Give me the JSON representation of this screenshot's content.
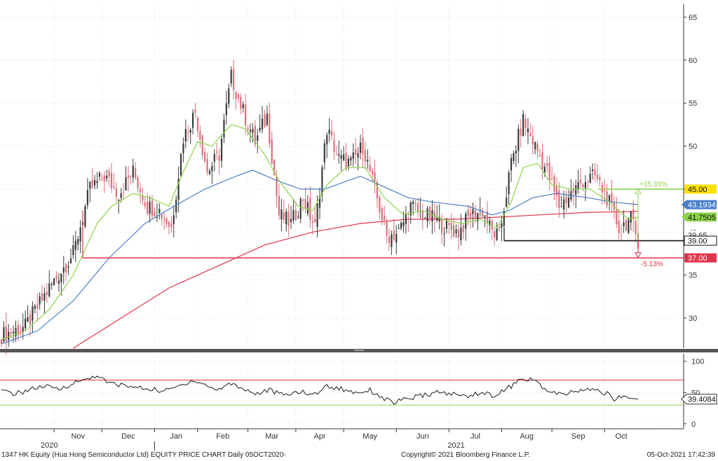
{
  "chart_data": [
    {
      "type": "candlestick",
      "title": "",
      "xlabel": "",
      "ylabel": "",
      "ylim": [
        26.5,
        66.5
      ],
      "y_ticks": [
        30,
        35,
        40,
        45,
        50,
        55,
        60,
        65
      ],
      "x_month_labels": [
        "Nov",
        "Dec",
        "Jan",
        "Feb",
        "Mar",
        "Apr",
        "May",
        "Jun",
        "Jul",
        "Aug",
        "Sep",
        "Oct"
      ],
      "x_year_labels": [
        "2020",
        "2021"
      ],
      "grid": true,
      "series": [
        {
          "name": "Price",
          "type": "candlestick",
          "up_color": "#3a3a3a",
          "down_color": "#d96f7a"
        },
        {
          "name": "",
          "type": "line",
          "color": "#8bd44a"
        },
        {
          "name": "",
          "type": "line",
          "color": "#4a7fc8"
        },
        {
          "name": "",
          "type": "line",
          "color": "#e0344a"
        }
      ],
      "close_path": [
        [
          0,
          28.0
        ],
        [
          10,
          29.0
        ],
        [
          20,
          33.5
        ],
        [
          30,
          37.5
        ],
        [
          37,
          45.0
        ],
        [
          43,
          46.5
        ],
        [
          49,
          44.5
        ],
        [
          55,
          47.0
        ],
        [
          61,
          43.0
        ],
        [
          66,
          42.5
        ],
        [
          71,
          40.5
        ],
        [
          76,
          51.0
        ],
        [
          81,
          54.0
        ],
        [
          86,
          47.0
        ],
        [
          91,
          49.0
        ],
        [
          96,
          58.0
        ],
        [
          101,
          54.0
        ],
        [
          106,
          50.5
        ],
        [
          111,
          53.5
        ],
        [
          116,
          42.0
        ],
        [
          121,
          41.0
        ],
        [
          126,
          44.0
        ],
        [
          131,
          40.5
        ],
        [
          136,
          52.0
        ],
        [
          141,
          48.5
        ],
        [
          146,
          48.0
        ],
        [
          151,
          50.0
        ],
        [
          156,
          45.0
        ],
        [
          161,
          39.5
        ],
        [
          166,
          40.0
        ],
        [
          171,
          43.0
        ],
        [
          176,
          42.0
        ],
        [
          181,
          41.5
        ],
        [
          186,
          40.5
        ],
        [
          191,
          40.0
        ],
        [
          196,
          42.0
        ],
        [
          201,
          42.5
        ],
        [
          205,
          40.0
        ],
        [
          208,
          39.5
        ],
        [
          213,
          48.0
        ],
        [
          218,
          53.0
        ],
        [
          223,
          50.0
        ],
        [
          228,
          47.0
        ],
        [
          233,
          43.0
        ],
        [
          238,
          44.5
        ],
        [
          243,
          46.0
        ],
        [
          248,
          46.5
        ],
        [
          253,
          44.0
        ],
        [
          258,
          40.5
        ],
        [
          263,
          41.5
        ],
        [
          266,
          39.0
        ]
      ],
      "ma_fast_path": [
        [
          0,
          27.5
        ],
        [
          10,
          28.5
        ],
        [
          20,
          31.0
        ],
        [
          30,
          35.0
        ],
        [
          40,
          41.0
        ],
        [
          46,
          43.0
        ],
        [
          55,
          44.5
        ],
        [
          62,
          44.0
        ],
        [
          70,
          43.0
        ],
        [
          76,
          47.0
        ],
        [
          82,
          50.5
        ],
        [
          88,
          50.0
        ],
        [
          96,
          52.5
        ],
        [
          102,
          52.0
        ],
        [
          110,
          49.0
        ],
        [
          116,
          46.0
        ],
        [
          124,
          43.0
        ],
        [
          130,
          42.5
        ],
        [
          136,
          45.5
        ],
        [
          144,
          47.5
        ],
        [
          152,
          47.5
        ],
        [
          160,
          44.0
        ],
        [
          168,
          42.0
        ],
        [
          176,
          42.5
        ],
        [
          184,
          41.5
        ],
        [
          192,
          41.0
        ],
        [
          200,
          41.5
        ],
        [
          207,
          40.5
        ],
        [
          213,
          43.5
        ],
        [
          218,
          47.5
        ],
        [
          224,
          48.0
        ],
        [
          230,
          45.5
        ],
        [
          238,
          45.0
        ],
        [
          246,
          45.0
        ],
        [
          254,
          43.5
        ],
        [
          262,
          41.5
        ],
        [
          266,
          41.75
        ]
      ],
      "ma_mid_path": [
        [
          0,
          27.0
        ],
        [
          15,
          28.5
        ],
        [
          30,
          32.0
        ],
        [
          45,
          37.0
        ],
        [
          60,
          41.0
        ],
        [
          72,
          43.0
        ],
        [
          85,
          45.0
        ],
        [
          98,
          46.5
        ],
        [
          105,
          47.2
        ],
        [
          115,
          46.0
        ],
        [
          125,
          45.0
        ],
        [
          135,
          45.0
        ],
        [
          150,
          46.5
        ],
        [
          158,
          45.5
        ],
        [
          170,
          44.0
        ],
        [
          180,
          43.5
        ],
        [
          195,
          43.0
        ],
        [
          205,
          42.0
        ],
        [
          212,
          42.5
        ],
        [
          222,
          44.0
        ],
        [
          232,
          44.5
        ],
        [
          245,
          44.0
        ],
        [
          255,
          43.5
        ],
        [
          266,
          43.19
        ]
      ],
      "ma_slow_path": [
        [
          30,
          26.5
        ],
        [
          50,
          30.0
        ],
        [
          70,
          33.5
        ],
        [
          90,
          36.0
        ],
        [
          110,
          38.5
        ],
        [
          130,
          40.0
        ],
        [
          150,
          41.0
        ],
        [
          170,
          41.5
        ],
        [
          190,
          41.5
        ],
        [
          205,
          41.7
        ],
        [
          225,
          42.0
        ],
        [
          245,
          42.3
        ],
        [
          266,
          42.4
        ]
      ],
      "horizontal_levels": [
        {
          "value": 45.0,
          "label": "45.00",
          "color": "#8bd44a"
        },
        {
          "value": 39.0,
          "label": "39.00",
          "color": "#111111"
        },
        {
          "value": 37.0,
          "label": "37.00",
          "color": "#e0344a"
        }
      ],
      "annotations": [
        {
          "text": "+15.33%",
          "color": "#8bd44a"
        },
        {
          "text": "-5.13%",
          "color": "#e0344a"
        }
      ],
      "value_tags": [
        {
          "label": "43.1934",
          "value": 43.1934,
          "color": "#4a7fc8"
        },
        {
          "label": "41.7505",
          "value": 41.7505,
          "color": "#8bd44a"
        },
        {
          "label": "39.65",
          "value": 39.65,
          "color": "#e0344a"
        }
      ]
    },
    {
      "type": "line",
      "title": "",
      "ylim": [
        -8,
        112
      ],
      "y_ticks": [
        0,
        50,
        100
      ],
      "reference_lines": [
        {
          "value": 70,
          "color": "#e0344a"
        },
        {
          "value": 30,
          "color": "#8bd44a"
        }
      ],
      "last_value_label": "39.4084",
      "last_value": 39.4084,
      "series": [
        {
          "name": "",
          "color": "#1a1a1a",
          "path": [
            [
              0,
              52
            ],
            [
              6,
              48
            ],
            [
              12,
              55
            ],
            [
              18,
              60
            ],
            [
              24,
              55
            ],
            [
              30,
              65
            ],
            [
              36,
              72
            ],
            [
              40,
              78
            ],
            [
              44,
              66
            ],
            [
              50,
              62
            ],
            [
              56,
              58
            ],
            [
              62,
              56
            ],
            [
              68,
              52
            ],
            [
              74,
              60
            ],
            [
              80,
              70
            ],
            [
              84,
              64
            ],
            [
              90,
              54
            ],
            [
              96,
              65
            ],
            [
              100,
              58
            ],
            [
              106,
              48
            ],
            [
              112,
              54
            ],
            [
              118,
              45
            ],
            [
              124,
              52
            ],
            [
              130,
              46
            ],
            [
              136,
              60
            ],
            [
              142,
              56
            ],
            [
              148,
              50
            ],
            [
              154,
              54
            ],
            [
              160,
              40
            ],
            [
              164,
              34
            ],
            [
              170,
              40
            ],
            [
              176,
              45
            ],
            [
              182,
              50
            ],
            [
              188,
              48
            ],
            [
              194,
              44
            ],
            [
              200,
              50
            ],
            [
              206,
              45
            ],
            [
              212,
              58
            ],
            [
              216,
              68
            ],
            [
              220,
              72
            ],
            [
              224,
              66
            ],
            [
              228,
              52
            ],
            [
              234,
              46
            ],
            [
              240,
              52
            ],
            [
              246,
              55
            ],
            [
              252,
              50
            ],
            [
              256,
              40
            ],
            [
              260,
              44
            ],
            [
              266,
              39.4
            ]
          ]
        }
      ]
    }
  ],
  "footer": {
    "left": "1347 HK Equity (Hua Hong Semiconductor Ltd) EQUITY PRICE CHART  Daily 05OCT2020-",
    "center": "Copyright© 2021 Bloomberg Finance L.P.",
    "right": "05-Oct-2021 17:42:39"
  },
  "colors": {
    "candle_up": "#3a3a3a",
    "candle_down": "#d96f7a",
    "ma_fast": "#8bd44a",
    "ma_mid": "#4a7fc8",
    "ma_slow": "#e0344a",
    "separator": "#555555",
    "grid": "#e4e4e4"
  }
}
